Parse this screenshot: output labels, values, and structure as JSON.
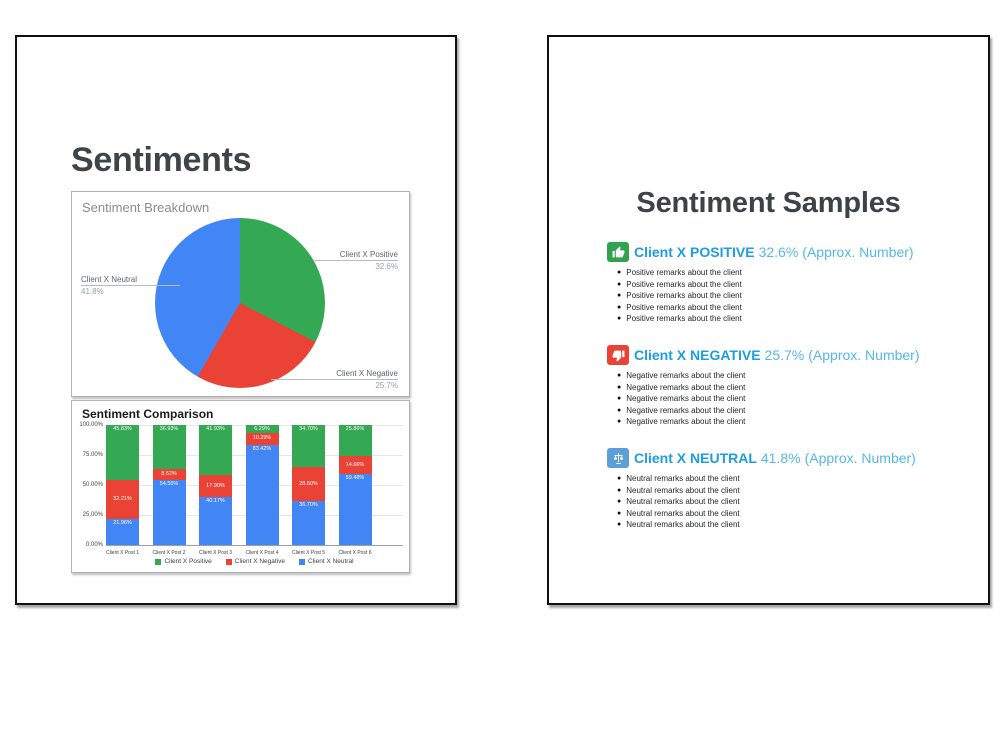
{
  "page": {
    "background": "#ffffff"
  },
  "sentiments_slide": {
    "title": "Sentiments",
    "pie": {
      "title": "Sentiment Breakdown",
      "callouts": {
        "positive": {
          "name": "Client X Positive",
          "pct": "32.6%"
        },
        "negative": {
          "name": "Client X Negative",
          "pct": "25.7%"
        },
        "neutral": {
          "name": "Client X Neutral",
          "pct": "41.8%"
        }
      }
    },
    "bar": {
      "title": "Sentiment Comparison",
      "y_ticks": [
        "100.00%",
        "75.00%",
        "50.00%",
        "25.00%",
        "0.00%"
      ],
      "legend": [
        "Client X Positive",
        "Client X Negative",
        "Client X Neutral"
      ]
    }
  },
  "samples_slide": {
    "title": "Sentiment Samples",
    "sections": [
      {
        "icon": "thumbs-up-icon",
        "icon_bg": "#31a24f",
        "name": "Client X POSITIVE",
        "pct": "32.6%",
        "approx": "(Approx. Number)",
        "bullets": [
          "Positive remarks about the client",
          "Positive remarks about the client",
          "Positive remarks about the client",
          "Positive remarks about the client",
          "Positive remarks about the client"
        ]
      },
      {
        "icon": "thumbs-down-icon",
        "icon_bg": "#ea4335",
        "name": "Client X NEGATIVE",
        "pct": "25.7%",
        "approx": "(Approx. Number)",
        "bullets": [
          "Negative remarks about the client",
          "Negative remarks about the client",
          "Negative remarks about the client",
          "Negative remarks about the client",
          "Negative remarks about the client"
        ]
      },
      {
        "icon": "balance-scale-icon",
        "icon_bg": "#5c9fd8",
        "name": "Client X NEUTRAL",
        "pct": "41.8%",
        "approx": "(Approx. Number)",
        "bullets": [
          "Neutral remarks about the client",
          "Neutral remarks about the client",
          "Neutral remarks about the client",
          "Neutral remarks about the client",
          "Neutral remarks about the client"
        ]
      }
    ]
  },
  "chart_data": [
    {
      "type": "pie",
      "title": "Sentiment Breakdown",
      "labels": [
        "Client X Positive",
        "Client X Negative",
        "Client X Neutral"
      ],
      "values": [
        32.6,
        25.7,
        41.8
      ],
      "colors": [
        "#34a853",
        "#ea4335",
        "#4285f4"
      ],
      "start_angle_deg": 0,
      "direction": "clockwise",
      "legend_position": "none",
      "annotations": "callout labels outside slices with name and percent"
    },
    {
      "type": "bar",
      "subtype": "stacked-100-percent",
      "title": "Sentiment Comparison",
      "categories": [
        "Client X Post 1",
        "Client X Post 2",
        "Client X Post 3",
        "Client X Post 4",
        "Client X Post 5",
        "Client X Post 6"
      ],
      "series": [
        {
          "name": "Client X Positive",
          "color": "#34a853",
          "values": [
            45.83,
            36.93,
            41.93,
            6.29,
            34.7,
            25.86
          ]
        },
        {
          "name": "Client X Negative",
          "color": "#ea4335",
          "values": [
            32.21,
            8.52,
            17.9,
            10.29,
            28.6,
            14.66
          ]
        },
        {
          "name": "Client X Neutral",
          "color": "#4285f4",
          "values": [
            21.96,
            54.55,
            40.17,
            83.42,
            36.7,
            59.48
          ]
        }
      ],
      "stack_order_top_to_bottom": [
        "Client X Positive",
        "Client X Negative",
        "Client X Neutral"
      ],
      "ylim": [
        0,
        100
      ],
      "y_ticks": [
        "0.00%",
        "25.00%",
        "50.00%",
        "75.00%",
        "100.00%"
      ],
      "grid": true,
      "legend_position": "bottom",
      "data_labels": "percent with two decimals shown in white inside each segment"
    }
  ]
}
